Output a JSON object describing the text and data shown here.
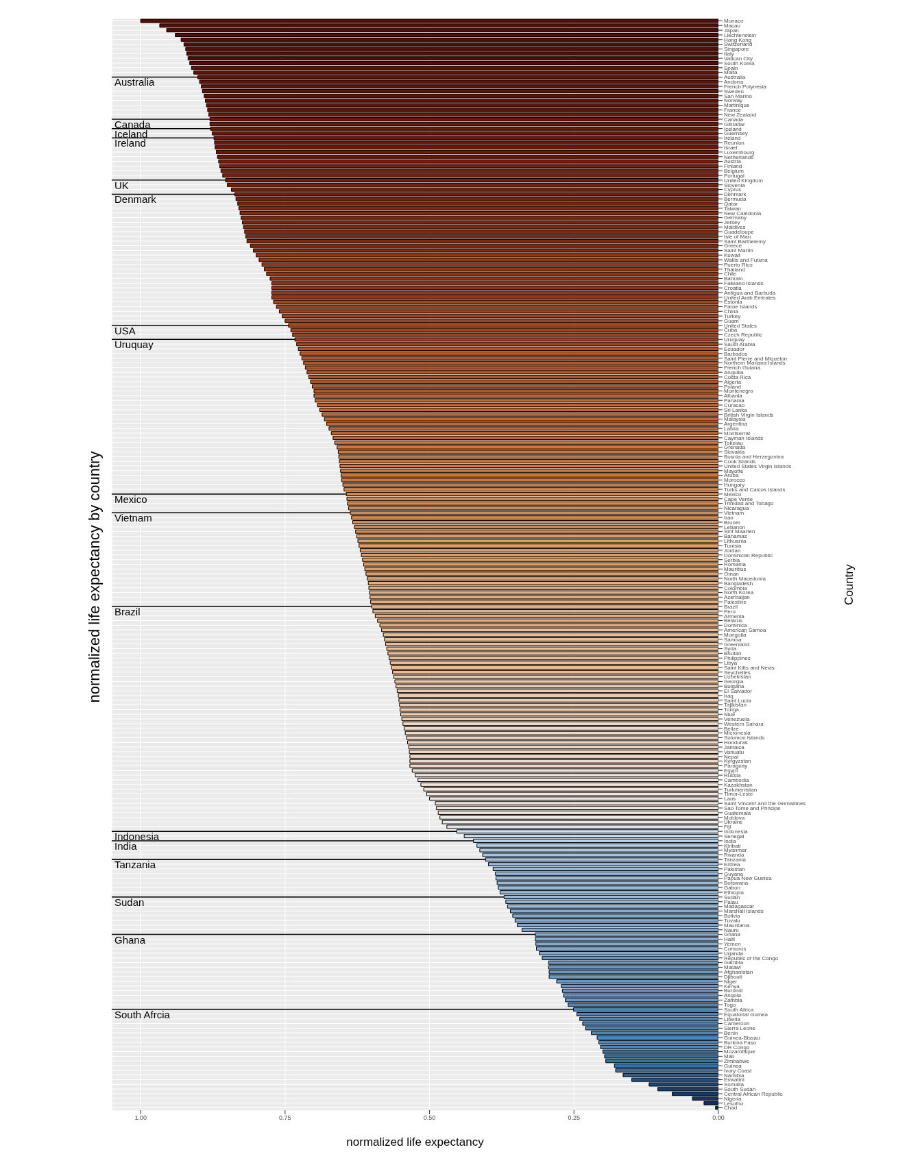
{
  "chart_data": {
    "type": "bar",
    "orientation": "horizontal",
    "title": "normalized life expectancy by country",
    "xlabel": "normalized life expectancy",
    "ylabel": "Country",
    "categories": [
      "Monaco",
      "Macau",
      "Japan",
      "Liechtenstein",
      "Hong Kong",
      "Switzerland",
      "Singapore",
      "Italy",
      "Vatican City",
      "South Korea",
      "Spain",
      "Malta",
      "Australia",
      "Andorra",
      "French Polynesia",
      "Sweden",
      "San Marino",
      "Norway",
      "Martinique",
      "France",
      "New Zealand",
      "Canada",
      "Gibraltar",
      "Iceland",
      "Guernsey",
      "Ireland",
      "Reunion",
      "Israel",
      "Luxembourg",
      "Netherlands",
      "Austria",
      "Finland",
      "Belgium",
      "Portugal",
      "United Kingdom",
      "Slovenia",
      "Cyprus",
      "Denmark",
      "Bermuda",
      "Qatar",
      "Taiwan",
      "New Caledonia",
      "Germany",
      "Jersey",
      "Maldives",
      "Guadeloupe",
      "Isle of Man",
      "Saint Barthelemy",
      "Greece",
      "Saint Martin",
      "Kuwait",
      "Wallis and Futuna",
      "Puerto Rico",
      "Thailand",
      "Chile",
      "Bahrain",
      "Falkland Islands",
      "Croatia",
      "Antigua and Barbuda",
      "United Arab Emirates",
      "Estonia",
      "Faroe Islands",
      "China",
      "Turkey",
      "Guam",
      "United States",
      "Cuba",
      "Czech Republic",
      "Uruguay",
      "Saudi Arabia",
      "Ecuador",
      "Barbados",
      "Saint Pierre and Miquelon",
      "Northern Mariana Islands",
      "French Guiana",
      "Anguilla",
      "Costa Rica",
      "Algeria",
      "Poland",
      "Montenegro",
      "Albania",
      "Panama",
      "Curacao",
      "Sri Lanka",
      "British Virgin Islands",
      "Malaysia",
      "Argentina",
      "Latvia",
      "Montserrat",
      "Cayman Islands",
      "Tokelau",
      "Grenada",
      "Slovakia",
      "Bosnia and Herzegovina",
      "Cook Islands",
      "United States Virgin Islands",
      "Mayotte",
      "Aruba",
      "Morocco",
      "Hungary",
      "Turks and Caicos Islands",
      "Mexico",
      "Cape Verde",
      "Trinidad and Tobago",
      "Nicaragua",
      "Vietnam",
      "Iran",
      "Brunei",
      "Lebanon",
      "Sint Maarten",
      "Bahamas",
      "Lithuania",
      "Tunisia",
      "Jordan",
      "Dominican Republic",
      "Serbia",
      "Romania",
      "Mauritius",
      "Oman",
      "North Macedonia",
      "Bangladesh",
      "Colombia",
      "North Korea",
      "Azerbaijan",
      "Palestine",
      "Brazil",
      "Peru",
      "Armenia",
      "Belarus",
      "Dominica",
      "American Samoa",
      "Mongolia",
      "Samoa",
      "Greenland",
      "Syria",
      "Bhutan",
      "Philippines",
      "Libya",
      "Saint Kitts and Nevis",
      "Seychelles",
      "Uzbekistan",
      "Georgia",
      "Bulgaria",
      "El Salvador",
      "Iraq",
      "Saint Lucia",
      "Tajikistan",
      "Tonga",
      "Niue",
      "Venezuela",
      "Western Sahara",
      "Belize",
      "Micronesia",
      "Solomon Islands",
      "Honduras",
      "Jamaica",
      "Vanuatu",
      "Nepal",
      "Kyrgyzstan",
      "Paraguay",
      "Egypt",
      "Russia",
      "Cambodia",
      "Kazakhstan",
      "Turkmenistan",
      "Timor-Leste",
      "Laos",
      "Saint Vincent and the Grenadines",
      "Sao Tome and Principe",
      "Guatemala",
      "Moldova",
      "Ukraine",
      "Fiji",
      "Indonesia",
      "Senegal",
      "India",
      "Kiribati",
      "Myanmar",
      "Rwanda",
      "Tanzania",
      "Eritrea",
      "Pakistan",
      "Guyana",
      "Papua New Guinea",
      "Botswana",
      "Gabon",
      "Ethiopia",
      "Sudan",
      "Palau",
      "Madagascar",
      "Marshall Islands",
      "Bolivia",
      "Tuvalu",
      "Mauritania",
      "Nauru",
      "Ghana",
      "Haiti",
      "Yemen",
      "Comoros",
      "Uganda",
      "Republic of the Congo",
      "Gambia",
      "Malawi",
      "Afghanistan",
      "Djibouti",
      "Niger",
      "Kenya",
      "Burundi",
      "Angola",
      "Zambia",
      "Togo",
      "South Africa",
      "Equatorial Guinea",
      "Liberia",
      "Cameroon",
      "Sierra Leone",
      "Benin",
      "Guinea-Bissau",
      "Burkina Faso",
      "DR Congo",
      "Mozambique",
      "Mali",
      "Zimbabwe",
      "Guinea",
      "Ivory Coast",
      "Namibia",
      "Eswatini",
      "Somalia",
      "South Sudan",
      "Central African Republic",
      "Nigeria",
      "Lesotho",
      "Chad"
    ],
    "values": [
      1.0,
      0.967,
      0.955,
      0.94,
      0.93,
      0.925,
      0.922,
      0.92,
      0.918,
      0.915,
      0.912,
      0.908,
      0.901,
      0.898,
      0.895,
      0.893,
      0.89,
      0.888,
      0.886,
      0.884,
      0.882,
      0.88,
      0.88,
      0.879,
      0.876,
      0.873,
      0.872,
      0.871,
      0.869,
      0.867,
      0.865,
      0.863,
      0.861,
      0.858,
      0.853,
      0.85,
      0.843,
      0.837,
      0.835,
      0.832,
      0.83,
      0.828,
      0.826,
      0.824,
      0.822,
      0.82,
      0.818,
      0.816,
      0.81,
      0.805,
      0.8,
      0.795,
      0.79,
      0.786,
      0.782,
      0.776,
      0.773,
      0.773,
      0.773,
      0.773,
      0.77,
      0.765,
      0.76,
      0.755,
      0.75,
      0.744,
      0.74,
      0.737,
      0.733,
      0.73,
      0.727,
      0.724,
      0.721,
      0.718,
      0.715,
      0.712,
      0.709,
      0.706,
      0.703,
      0.7,
      0.7,
      0.698,
      0.694,
      0.69,
      0.686,
      0.682,
      0.678,
      0.674,
      0.67,
      0.667,
      0.664,
      0.66,
      0.658,
      0.657,
      0.656,
      0.655,
      0.654,
      0.653,
      0.652,
      0.65,
      0.648,
      0.644,
      0.643,
      0.642,
      0.64,
      0.637,
      0.635,
      0.633,
      0.63,
      0.628,
      0.626,
      0.624,
      0.622,
      0.62,
      0.618,
      0.616,
      0.614,
      0.612,
      0.61,
      0.608,
      0.606,
      0.605,
      0.604,
      0.603,
      0.602,
      0.6,
      0.598,
      0.594,
      0.59,
      0.586,
      0.583,
      0.58,
      0.578,
      0.576,
      0.574,
      0.572,
      0.57,
      0.568,
      0.566,
      0.564,
      0.562,
      0.56,
      0.558,
      0.556,
      0.554,
      0.553,
      0.552,
      0.551,
      0.55,
      0.548,
      0.546,
      0.544,
      0.542,
      0.54,
      0.538,
      0.536,
      0.535,
      0.534,
      0.534,
      0.534,
      0.53,
      0.525,
      0.52,
      0.515,
      0.51,
      0.505,
      0.5,
      0.49,
      0.488,
      0.485,
      0.482,
      0.478,
      0.47,
      0.453,
      0.44,
      0.424,
      0.418,
      0.413,
      0.408,
      0.403,
      0.398,
      0.39,
      0.386,
      0.385,
      0.383,
      0.381,
      0.378,
      0.371,
      0.368,
      0.365,
      0.36,
      0.356,
      0.352,
      0.348,
      0.34,
      0.317,
      0.317,
      0.316,
      0.315,
      0.31,
      0.305,
      0.294,
      0.294,
      0.293,
      0.293,
      0.28,
      0.272,
      0.27,
      0.268,
      0.265,
      0.26,
      0.251,
      0.245,
      0.24,
      0.235,
      0.23,
      0.22,
      0.21,
      0.207,
      0.204,
      0.2,
      0.197,
      0.195,
      0.18,
      0.178,
      0.165,
      0.15,
      0.12,
      0.105,
      0.08,
      0.045,
      0.025,
      0.005
    ],
    "colors": [
      "#5a0b02",
      "#5a0b02",
      "#5a0b02",
      "#5a0b02",
      "#5a0b02",
      "#5a0b02",
      "#5a0b02",
      "#5a0b02",
      "#5a0b02",
      "#5a0b02",
      "#661103",
      "#661103",
      "#661103",
      "#661103",
      "#661103",
      "#661103",
      "#661103",
      "#661103",
      "#661103",
      "#661103",
      "#721704",
      "#721704",
      "#721704",
      "#721704",
      "#721704",
      "#721704",
      "#721704",
      "#721704",
      "#721704",
      "#721704",
      "#7e1e06",
      "#7e1e06",
      "#7e1e06",
      "#7e1e06",
      "#7e1e06",
      "#7e1e06",
      "#7e1e06",
      "#7e1e06",
      "#7e1e06",
      "#7e1e06",
      "#8a2608",
      "#8a2608",
      "#8a2608",
      "#8a2608",
      "#8a2608",
      "#8a2608",
      "#8a2608",
      "#8a2608",
      "#8a2608",
      "#8a2608",
      "#9a330e",
      "#9a330e",
      "#9a330e",
      "#9a330e",
      "#9a330e",
      "#9a330e",
      "#9a330e",
      "#9a330e",
      "#9a330e",
      "#9a330e",
      "#aa4216",
      "#aa4216",
      "#aa4216",
      "#aa4216",
      "#aa4216",
      "#aa4216",
      "#aa4216",
      "#aa4216",
      "#aa4216",
      "#aa4216",
      "#ba531f",
      "#ba531f",
      "#ba531f",
      "#ba531f",
      "#ba531f",
      "#ba531f",
      "#ba531f",
      "#ba531f",
      "#ba531f",
      "#ba531f",
      "#c6642a",
      "#c6642a",
      "#c6642a",
      "#c6642a",
      "#c6642a",
      "#c6642a",
      "#c6642a",
      "#c6642a",
      "#c6642a",
      "#c6642a",
      "#d07636",
      "#d07636",
      "#d07636",
      "#d07636",
      "#d07636",
      "#d07636",
      "#d07636",
      "#d07636",
      "#d07636",
      "#d07636",
      "#d98a4a",
      "#d98a4a",
      "#d98a4a",
      "#d98a4a",
      "#d98a4a",
      "#d98a4a",
      "#d98a4a",
      "#d98a4a",
      "#d98a4a",
      "#d98a4a",
      "#e09c62",
      "#e09c62",
      "#e09c62",
      "#e09c62",
      "#e09c62",
      "#e09c62",
      "#e09c62",
      "#e09c62",
      "#e09c62",
      "#e09c62",
      "#e6ad7c",
      "#e6ad7c",
      "#e6ad7c",
      "#e6ad7c",
      "#e6ad7c",
      "#e6ad7c",
      "#e6ad7c",
      "#e6ad7c",
      "#e6ad7c",
      "#e6ad7c",
      "#ebbd96",
      "#ebbd96",
      "#ebbd96",
      "#ebbd96",
      "#ebbd96",
      "#ebbd96",
      "#ebbd96",
      "#ebbd96",
      "#ebbd96",
      "#ebbd96",
      "#efcbae",
      "#efcbae",
      "#efcbae",
      "#efcbae",
      "#efcbae",
      "#efcbae",
      "#efcbae",
      "#efcbae",
      "#efcbae",
      "#efcbae",
      "#f1d8c6",
      "#f1d8c6",
      "#f1d8c6",
      "#f1d8c6",
      "#f1d8c6",
      "#f1d8c6",
      "#f1d8c6",
      "#f1d8c6",
      "#f1d8c6",
      "#f1d8c6",
      "#f2e4da",
      "#f2e4da",
      "#f2e4da",
      "#f2e4da",
      "#f2e4da",
      "#f2e4da",
      "#f2e4da",
      "#f2e4da",
      "#f2e4da",
      "#f2e4da",
      "#eeeae6",
      "#eeeae6",
      "#e2e6ea",
      "#cfe0ee",
      "#c5daeb",
      "#bad3e8",
      "#b2cee6",
      "#aac9e3",
      "#a4c5e1",
      "#9dc0df",
      "#96bbdc",
      "#96bbdc",
      "#96bbdc",
      "#96bbdc",
      "#96bbdc",
      "#96bbdc",
      "#96bbdc",
      "#96bbdc",
      "#96bbdc",
      "#96bbdc",
      "#7faad2",
      "#7faad2",
      "#7faad2",
      "#7faad2",
      "#7faad2",
      "#7faad2",
      "#7faad2",
      "#7faad2",
      "#7faad2",
      "#7faad2",
      "#6699c8",
      "#6699c8",
      "#6699c8",
      "#6699c8",
      "#6699c8",
      "#6699c8",
      "#6699c8",
      "#6699c8",
      "#6699c8",
      "#6699c8",
      "#4e86bc",
      "#4e86bc",
      "#4e86bc",
      "#4e86bc",
      "#4e86bc",
      "#4e86bc",
      "#4e86bc",
      "#4e86bc",
      "#4e86bc",
      "#4e86bc",
      "#3470aa",
      "#3470aa",
      "#3470aa",
      "#3470aa",
      "#3470aa",
      "#2a5f98",
      "#245486",
      "#1d4a7a",
      "#173f70",
      "#143a6a",
      "#0f3566",
      "#0c2f5e",
      "#0a2a56"
    ],
    "xlim": [
      1.05,
      0
    ],
    "xticks": [
      {
        "value": 1,
        "label": "1.00"
      },
      {
        "value": 0.75,
        "label": "0.75"
      },
      {
        "value": 0.5,
        "label": "0.50"
      },
      {
        "value": 0.25,
        "label": "0.25"
      },
      {
        "value": 0,
        "label": "0.00"
      }
    ],
    "grid": true,
    "annotations": [
      {
        "text": "Australia",
        "x": 0.901,
        "y": "Australia"
      },
      {
        "text": "Canada",
        "x": 0.88,
        "y": "Canada"
      },
      {
        "text": "Iceland",
        "x": 0.879,
        "y": "Iceland"
      },
      {
        "text": "Ireland",
        "x": 0.873,
        "y": "Ireland"
      },
      {
        "text": "UK",
        "x": 0.853,
        "y": "United Kingdom"
      },
      {
        "text": "Denmark",
        "x": 0.837,
        "y": "Denmark"
      },
      {
        "text": "USA",
        "x": 0.744,
        "y": "United States"
      },
      {
        "text": "Uruquay",
        "x": 0.733,
        "y": "Uruguay"
      },
      {
        "text": "Mexico",
        "x": 0.644,
        "y": "Mexico"
      },
      {
        "text": "Vietnam",
        "x": 0.637,
        "y": "Vietnam"
      },
      {
        "text": "Brazil",
        "x": 0.6,
        "y": "Brazil"
      },
      {
        "text": "Indonesia",
        "x": 0.453,
        "y": "Indonesia"
      },
      {
        "text": "India",
        "x": 0.424,
        "y": "India"
      },
      {
        "text": "Tanzania",
        "x": 0.403,
        "y": "Tanzania"
      },
      {
        "text": "Sudan",
        "x": 0.371,
        "y": "Sudan"
      },
      {
        "text": "Ghana",
        "x": 0.317,
        "y": "Ghana"
      },
      {
        "text": "South Afrcia",
        "x": 0.251,
        "y": "South Africa"
      }
    ]
  }
}
